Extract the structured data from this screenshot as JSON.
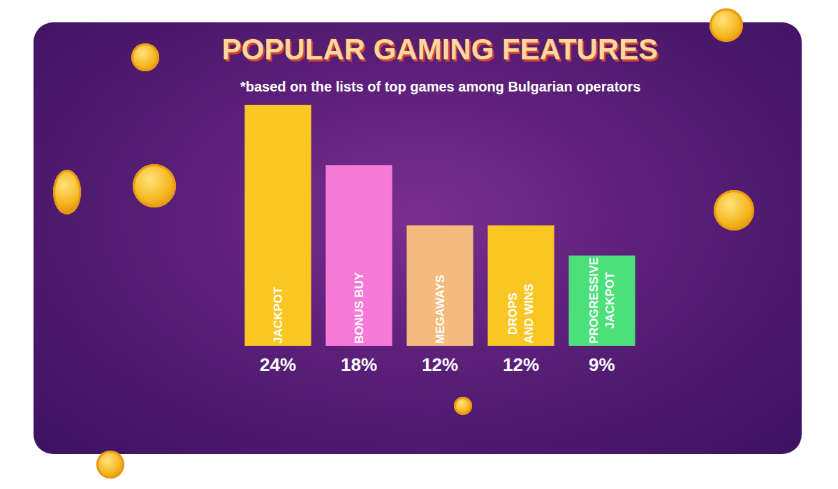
{
  "chart_data": {
    "type": "bar",
    "title": "POPULAR GAMING FEATURES",
    "subtitle": "*based on the lists of top games among Bulgarian operators",
    "categories": [
      "JACKPOT",
      "BONUS BUY",
      "MEGAWAYS",
      "DROPS AND WINS",
      "PROGRESSIVE JACKPOT"
    ],
    "values": [
      24,
      18,
      12,
      12,
      9
    ],
    "value_labels": [
      "24%",
      "18%",
      "12%",
      "12%",
      "9%"
    ],
    "colors": [
      "#f9c623",
      "#f77ad8",
      "#f5bb7c",
      "#f9c623",
      "#4be07a"
    ],
    "ylim": [
      0,
      24
    ],
    "grid": false,
    "data_labels": true,
    "tick_labels": false
  }
}
